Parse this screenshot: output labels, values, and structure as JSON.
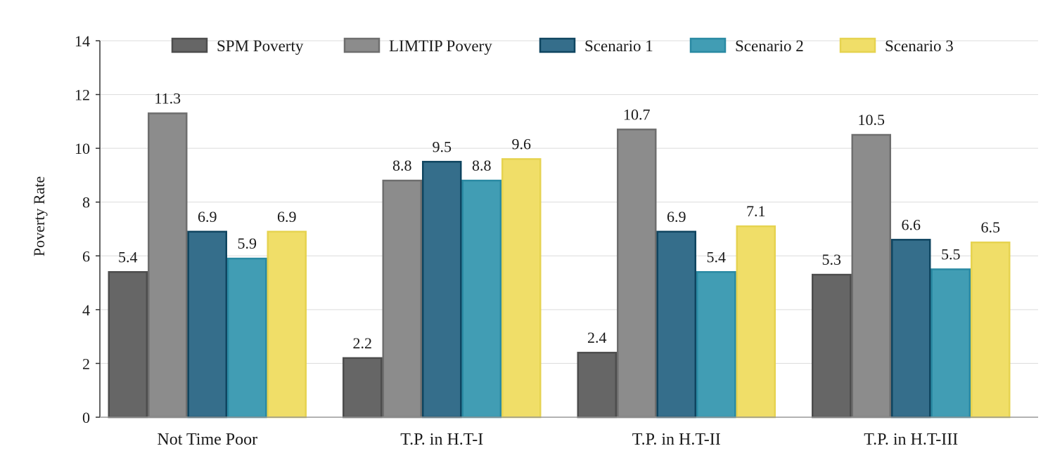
{
  "chart_data": {
    "type": "bar",
    "ylabel": "Poverty Rate",
    "xlabel": "",
    "ylim": [
      0,
      14
    ],
    "yticks": [
      0,
      2,
      4,
      6,
      8,
      10,
      12,
      14
    ],
    "grid": true,
    "legend_position": "top",
    "categories": [
      "Not Time Poor",
      "T.P. in H.T-I",
      "T.P. in H.T-II",
      "T.P. in H.T-III"
    ],
    "series": [
      {
        "name": "SPM Poverty",
        "values": [
          5.4,
          2.2,
          2.4,
          5.3
        ],
        "labels": [
          "5.4",
          "2.2",
          "2.4",
          "5.3"
        ],
        "color": "#666666",
        "stroke": "#4d4d4d"
      },
      {
        "name": "LIMTIP Povery",
        "values": [
          11.3,
          8.8,
          10.7,
          10.5
        ],
        "labels": [
          "11.3",
          "8.8",
          "10.7",
          "10.5"
        ],
        "color": "#8c8c8c",
        "stroke": "#6e6e6e"
      },
      {
        "name": "Scenario 1",
        "values": [
          6.9,
          9.5,
          6.9,
          6.6
        ],
        "labels": [
          "6.9",
          "9.5",
          "6.9",
          "6.6"
        ],
        "color": "#356e8b",
        "stroke": "#0f4560"
      },
      {
        "name": "Scenario 2",
        "values": [
          5.9,
          8.8,
          5.4,
          5.5
        ],
        "labels": [
          "5.9",
          "8.8",
          "5.4",
          "5.5"
        ],
        "color": "#419db4",
        "stroke": "#2a8aa3"
      },
      {
        "name": "Scenario 3",
        "values": [
          6.9,
          9.6,
          7.1,
          6.5
        ],
        "labels": [
          "6.9",
          "9.6",
          "7.1",
          "6.5"
        ],
        "color": "#f0de68",
        "stroke": "#e6d350"
      }
    ]
  }
}
